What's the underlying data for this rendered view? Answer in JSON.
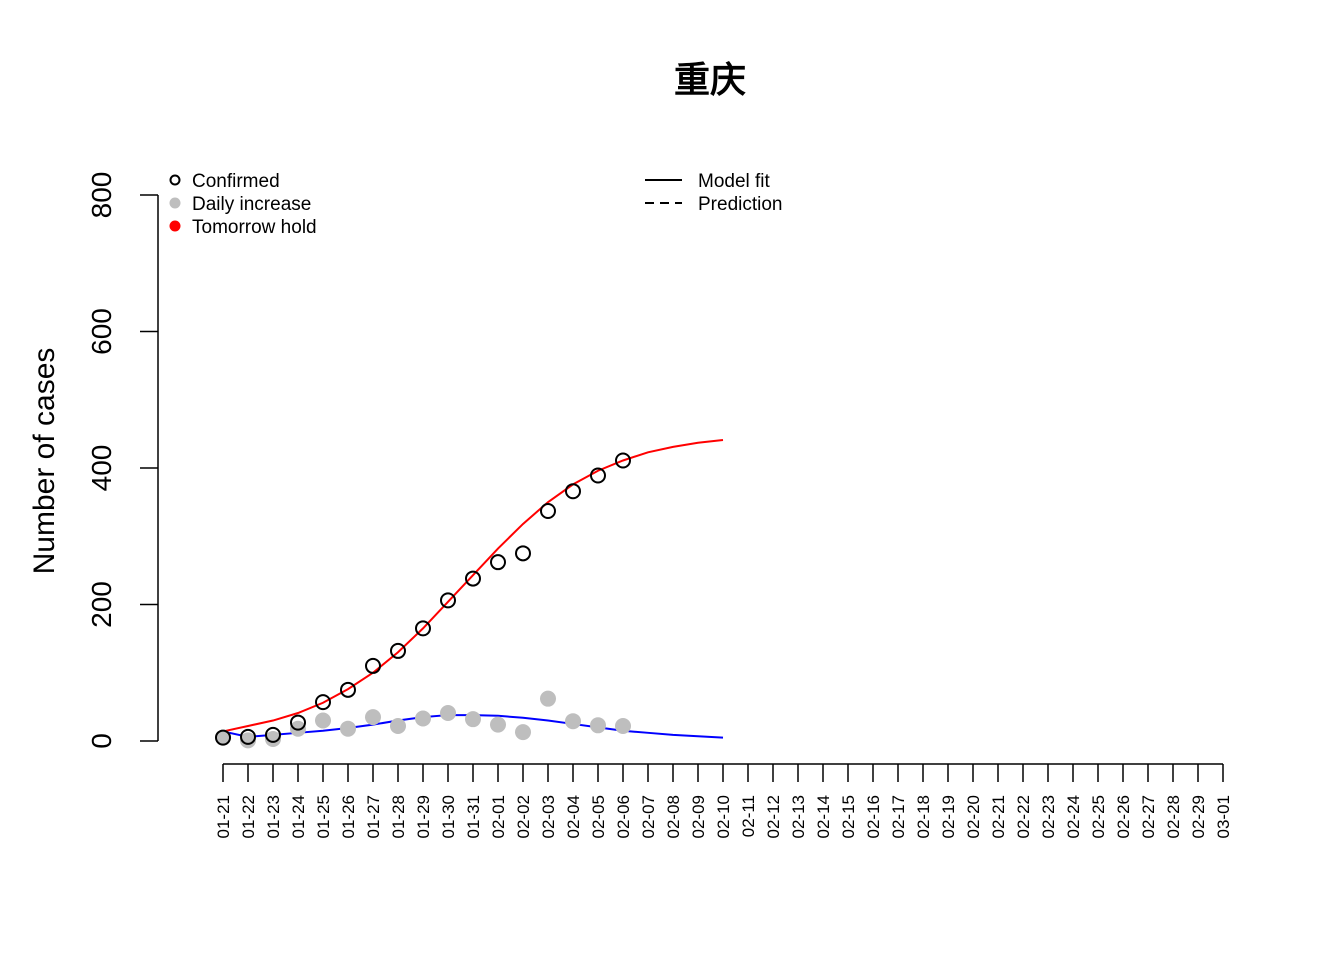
{
  "chart_data": {
    "type": "scatter",
    "title": "重庆",
    "xlabel": "",
    "ylabel": "Number of cases",
    "ylim": [
      0,
      800
    ],
    "yticks": [
      "0",
      "200",
      "400",
      "600",
      "800"
    ],
    "x": [
      "01-21",
      "01-22",
      "01-23",
      "01-24",
      "01-25",
      "01-26",
      "01-27",
      "01-28",
      "01-29",
      "01-30",
      "01-31",
      "02-01",
      "02-02",
      "02-03",
      "02-04",
      "02-05",
      "02-06",
      "02-07",
      "02-08",
      "02-09",
      "02-10",
      "02-11",
      "02-12",
      "02-13",
      "02-14",
      "02-15",
      "02-16",
      "02-17",
      "02-18",
      "02-19",
      "02-20",
      "02-21",
      "02-22",
      "02-23",
      "02-24",
      "02-25",
      "02-26",
      "02-27",
      "02-28",
      "02-29",
      "03-01"
    ],
    "series": [
      {
        "name": "Confirmed",
        "style": "open-circle",
        "color": "#000000",
        "values": [
          5,
          6,
          9,
          27,
          57,
          75,
          110,
          132,
          165,
          206,
          238,
          262,
          275,
          337,
          366,
          389,
          411
        ]
      },
      {
        "name": "Daily increase",
        "style": "filled-circle",
        "color": "#bebebe",
        "values": [
          5,
          1,
          3,
          18,
          30,
          18,
          35,
          22,
          33,
          41,
          32,
          24,
          13,
          62,
          29,
          23,
          22
        ]
      },
      {
        "name": "Model fit",
        "style": "line",
        "color": "#ff0000",
        "values": [
          14,
          22,
          30,
          41,
          56,
          76,
          100,
          130,
          165,
          204,
          243,
          282,
          318,
          350,
          376,
          396,
          411,
          423,
          431,
          437,
          441
        ]
      },
      {
        "name": "Model fit",
        "style": "line",
        "color": "#0000ff",
        "values": [
          14,
          6,
          9,
          12,
          15,
          19,
          24,
          30,
          35,
          38,
          38,
          37,
          34,
          30,
          25,
          20,
          15,
          12,
          9,
          7,
          5
        ]
      }
    ],
    "legend_left": [
      {
        "label": "Confirmed",
        "symbol": "open-circle",
        "color": "#000000"
      },
      {
        "label": "Daily increase",
        "symbol": "filled-circle",
        "color": "#bebebe"
      },
      {
        "label": "Tomorrow hold",
        "symbol": "filled-circle",
        "color": "#ff0000"
      }
    ],
    "legend_right": [
      {
        "label": "Model fit",
        "symbol": "solid-line"
      },
      {
        "label": "Prediction",
        "symbol": "dashed-line"
      }
    ],
    "legend_placement": "top-left",
    "grid": false
  }
}
